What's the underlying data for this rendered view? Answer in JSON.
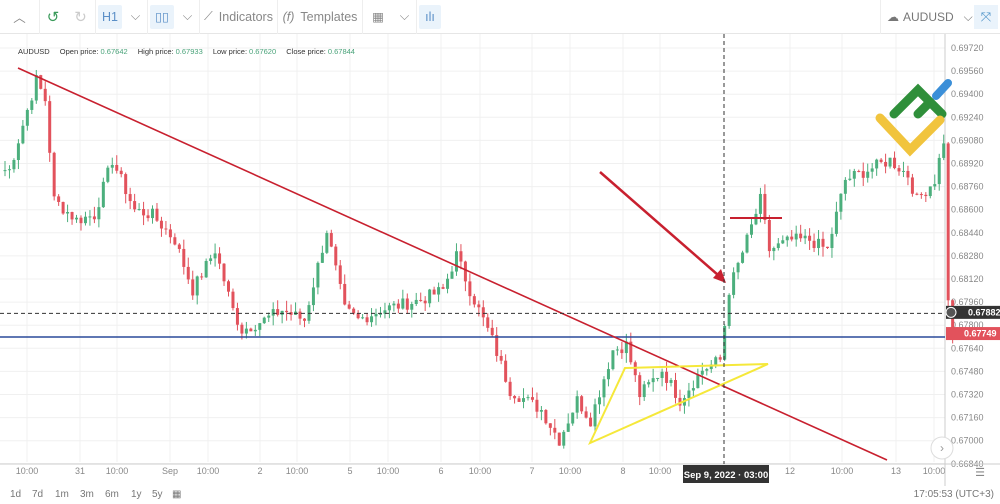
{
  "toolbar": {
    "interval": "H1",
    "indicators": "Indicators",
    "templates": "Templates",
    "symbol": "AUDUSD"
  },
  "legend": {
    "symbol": "AUDUSD",
    "open_label": "Open price:",
    "open": "0.67642",
    "high_label": "High price:",
    "high": "0.67933",
    "low_label": "Low price:",
    "low": "0.67620",
    "close_label": "Close price:",
    "close": "0.67844"
  },
  "colors": {
    "up": "#4caf7d",
    "down": "#e2525c",
    "trendline": "#c8202f",
    "triangle": "#f5e83a",
    "support": "#2a4a9a",
    "arrow": "#c8202f"
  },
  "chart_data": {
    "type": "candlestick",
    "price_ticks": [
      "0.69720",
      "0.69560",
      "0.69400",
      "0.69240",
      "0.69080",
      "0.68920",
      "0.68760",
      "0.68600",
      "0.68440",
      "0.68280",
      "0.68120",
      "0.67960",
      "0.67800",
      "0.67640",
      "0.67480",
      "0.67320",
      "0.67160",
      "0.67000",
      "0.66840"
    ],
    "time_ticks": [
      "10:00",
      "31",
      "10:00",
      "Sep",
      "10:00",
      "2",
      "10:00",
      "5",
      "10:00",
      "6",
      "10:00",
      "7",
      "10:00",
      "8",
      "10:00",
      "12",
      "10:00",
      "13",
      "10:00"
    ],
    "crosshair_time": "Sep 9, 2022 · 03:00",
    "crosshair_price": "0.67882",
    "last_price": "0.67749",
    "ylim": [
      0.6684,
      0.698
    ],
    "price_path": [
      [
        1,
        0.68875
      ],
      [
        7,
        0.69498
      ],
      [
        9,
        0.6936
      ],
      [
        11,
        0.68667
      ],
      [
        16,
        0.68529
      ],
      [
        20,
        0.68563
      ],
      [
        24,
        0.68944
      ],
      [
        29,
        0.68598
      ],
      [
        33,
        0.68563
      ],
      [
        38,
        0.6839
      ],
      [
        42,
        0.68044
      ],
      [
        47,
        0.68321
      ],
      [
        51,
        0.67905
      ],
      [
        53,
        0.67767
      ],
      [
        58,
        0.67836
      ],
      [
        62,
        0.67905
      ],
      [
        67,
        0.67836
      ],
      [
        72,
        0.68459
      ],
      [
        76,
        0.67905
      ],
      [
        79,
        0.67836
      ],
      [
        84,
        0.67905
      ],
      [
        93,
        0.67975
      ],
      [
        98,
        0.68044
      ],
      [
        101,
        0.68286
      ],
      [
        104,
        0.68044
      ],
      [
        109,
        0.67698
      ],
      [
        113,
        0.67351
      ],
      [
        120,
        0.67213
      ],
      [
        124,
        0.67005
      ],
      [
        128,
        0.67282
      ],
      [
        131,
        0.67144
      ],
      [
        136,
        0.67628
      ],
      [
        139,
        0.67663
      ],
      [
        142,
        0.67317
      ],
      [
        147,
        0.6749
      ],
      [
        151,
        0.67282
      ],
      [
        156,
        0.6749
      ],
      [
        160,
        0.67559
      ],
      [
        162,
        0.68044
      ],
      [
        166,
        0.6839
      ],
      [
        169,
        0.68667
      ],
      [
        171,
        0.68321
      ],
      [
        176,
        0.6839
      ],
      [
        180,
        0.6839
      ],
      [
        184,
        0.68321
      ],
      [
        188,
        0.68806
      ],
      [
        193,
        0.68875
      ],
      [
        198,
        0.68944
      ],
      [
        202,
        0.6884
      ],
      [
        204,
        0.68667
      ],
      [
        208,
        0.68806
      ],
      [
        210,
        0.69083
      ],
      [
        211,
        0.67951
      ],
      [
        212,
        0.67749
      ]
    ]
  },
  "bottom": {
    "ranges": [
      "1d",
      "7d",
      "1m",
      "3m",
      "6m",
      "1y",
      "5y"
    ],
    "clock": "17:05:53 (UTC+3)"
  }
}
